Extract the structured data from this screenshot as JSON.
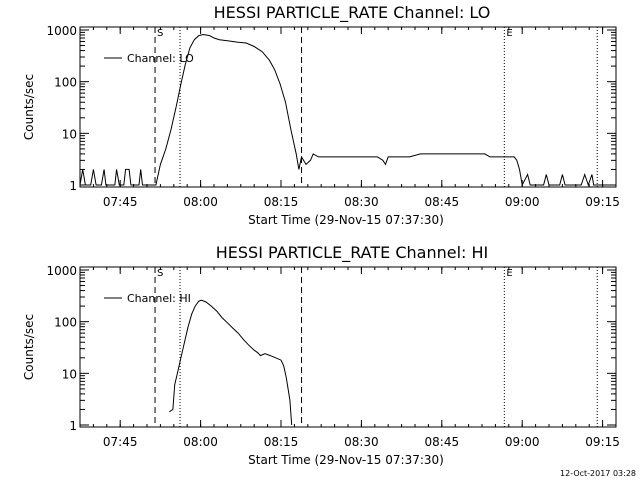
{
  "footer": {
    "timestamp": "12-Oct-2017 03:28"
  },
  "chart_data": [
    {
      "type": "line",
      "title": "HESSI PARTICLE_RATE Channel: LO",
      "xlabel": "Start Time (29-Nov-15 07:37:30)",
      "ylabel": "Counts/sec",
      "yscale": "log",
      "grid": false,
      "legend_position": "top-left",
      "xlim": [
        "07:37:30",
        "09:17:30"
      ],
      "ylim": [
        1,
        1000
      ],
      "x_ticks": [
        "07:45",
        "08:00",
        "08:15",
        "08:30",
        "08:45",
        "09:00",
        "09:15"
      ],
      "y_ticks": [
        "1",
        "10",
        "100",
        "1000"
      ],
      "markers": [
        {
          "time": "07:51:30",
          "style": "dashed",
          "label": "S"
        },
        {
          "time": "07:56:10",
          "style": "dotted",
          "label": ""
        },
        {
          "time": "08:18:50",
          "style": "dashed",
          "label": ""
        },
        {
          "time": "08:56:40",
          "style": "dotted",
          "label": "E"
        },
        {
          "time": "09:14:00",
          "style": "dotted",
          "label": ""
        }
      ],
      "series": [
        {
          "name": "Channel: LO",
          "points": [
            [
              "07:37:30",
              1
            ],
            [
              "07:38:00",
              2
            ],
            [
              "07:38:30",
              1
            ],
            [
              "07:39:30",
              1
            ],
            [
              "07:40:00",
              2
            ],
            [
              "07:40:30",
              1
            ],
            [
              "07:41:30",
              1
            ],
            [
              "07:42:00",
              2
            ],
            [
              "07:42:20",
              1
            ],
            [
              "07:44:00",
              1
            ],
            [
              "07:44:20",
              2
            ],
            [
              "07:44:50",
              1
            ],
            [
              "07:45:40",
              1
            ],
            [
              "07:46:00",
              2
            ],
            [
              "07:46:40",
              2
            ],
            [
              "07:47:00",
              1
            ],
            [
              "07:48:30",
              1
            ],
            [
              "07:48:50",
              2
            ],
            [
              "07:49:10",
              1
            ],
            [
              "07:51:00",
              1
            ],
            [
              "07:51:40",
              1
            ],
            [
              "07:52:30",
              2.5
            ],
            [
              "07:53:30",
              5
            ],
            [
              "07:54:30",
              12
            ],
            [
              "07:55:30",
              35
            ],
            [
              "07:56:20",
              90
            ],
            [
              "07:57:10",
              220
            ],
            [
              "07:58:00",
              450
            ],
            [
              "07:58:50",
              650
            ],
            [
              "07:59:40",
              780
            ],
            [
              "08:00:30",
              820
            ],
            [
              "08:01:40",
              780
            ],
            [
              "08:02:30",
              700
            ],
            [
              "08:03:30",
              650
            ],
            [
              "08:05:00",
              620
            ],
            [
              "08:07:00",
              580
            ],
            [
              "08:08:30",
              560
            ],
            [
              "08:10:00",
              480
            ],
            [
              "08:11:30",
              380
            ],
            [
              "08:12:50",
              260
            ],
            [
              "08:13:50",
              170
            ],
            [
              "08:14:50",
              90
            ],
            [
              "08:15:50",
              40
            ],
            [
              "08:16:50",
              12
            ],
            [
              "08:17:50",
              4
            ],
            [
              "08:18:20",
              2
            ],
            [
              "08:18:50",
              3.5
            ],
            [
              "08:19:40",
              2.5
            ],
            [
              "08:20:30",
              3
            ],
            [
              "08:21:00",
              4
            ],
            [
              "08:22:00",
              3.5
            ],
            [
              "08:24:00",
              3.5
            ],
            [
              "08:26:00",
              3.5
            ],
            [
              "08:28:00",
              3.5
            ],
            [
              "08:30:00",
              3.5
            ],
            [
              "08:32:00",
              3.5
            ],
            [
              "08:33:00",
              3.5
            ],
            [
              "08:34:00",
              3
            ],
            [
              "08:34:30",
              2.5
            ],
            [
              "08:35:00",
              3.5
            ],
            [
              "08:37:00",
              3.5
            ],
            [
              "08:39:00",
              3.5
            ],
            [
              "08:41:00",
              4
            ],
            [
              "08:43:00",
              4
            ],
            [
              "08:45:00",
              4
            ],
            [
              "08:47:00",
              4
            ],
            [
              "08:49:00",
              4
            ],
            [
              "08:51:00",
              4
            ],
            [
              "08:53:00",
              4
            ],
            [
              "08:54:00",
              3.5
            ],
            [
              "08:56:00",
              3.5
            ],
            [
              "08:57:30",
              3.5
            ],
            [
              "08:58:30",
              3.5
            ],
            [
              "08:59:00",
              3
            ],
            [
              "08:59:30",
              2
            ],
            [
              "09:00:00",
              1
            ],
            [
              "09:01:00",
              1.6
            ],
            [
              "09:01:30",
              1
            ],
            [
              "09:04:00",
              1
            ],
            [
              "09:04:30",
              1.6
            ],
            [
              "09:05:00",
              1
            ],
            [
              "09:07:00",
              1
            ],
            [
              "09:07:30",
              1.6
            ],
            [
              "09:08:00",
              1
            ],
            [
              "09:11:00",
              1
            ],
            [
              "09:11:40",
              1.6
            ],
            [
              "09:12:20",
              1
            ],
            [
              "09:13:00",
              1.6
            ],
            [
              "09:13:20",
              1
            ],
            [
              "09:17:30",
              1
            ]
          ]
        }
      ]
    },
    {
      "type": "line",
      "title": "HESSI PARTICLE_RATE Channel: HI",
      "xlabel": "Start Time (29-Nov-15 07:37:30)",
      "ylabel": "Counts/sec",
      "yscale": "log",
      "grid": false,
      "legend_position": "top-left",
      "xlim": [
        "07:37:30",
        "09:17:30"
      ],
      "ylim": [
        1,
        1000
      ],
      "x_ticks": [
        "07:45",
        "08:00",
        "08:15",
        "08:30",
        "08:45",
        "09:00",
        "09:15"
      ],
      "y_ticks": [
        "1",
        "10",
        "100",
        "1000"
      ],
      "markers": [
        {
          "time": "07:51:30",
          "style": "dashed",
          "label": "S"
        },
        {
          "time": "07:56:10",
          "style": "dotted",
          "label": ""
        },
        {
          "time": "08:18:50",
          "style": "dashed",
          "label": ""
        },
        {
          "time": "08:56:40",
          "style": "dotted",
          "label": "E"
        },
        {
          "time": "09:14:00",
          "style": "dotted",
          "label": ""
        }
      ],
      "series": [
        {
          "name": "Channel: HI",
          "points": [
            [
              "07:54:10",
              1.8
            ],
            [
              "07:54:50",
              2
            ],
            [
              "07:55:10",
              6
            ],
            [
              "07:55:40",
              10
            ],
            [
              "07:56:20",
              20
            ],
            [
              "07:57:00",
              40
            ],
            [
              "07:57:40",
              80
            ],
            [
              "07:58:20",
              140
            ],
            [
              "07:59:00",
              200
            ],
            [
              "07:59:40",
              250
            ],
            [
              "08:00:10",
              260
            ],
            [
              "08:01:00",
              240
            ],
            [
              "08:02:00",
              200
            ],
            [
              "08:03:00",
              160
            ],
            [
              "08:04:00",
              120
            ],
            [
              "08:05:00",
              95
            ],
            [
              "08:06:00",
              75
            ],
            [
              "08:07:00",
              60
            ],
            [
              "08:08:00",
              45
            ],
            [
              "08:09:00",
              35
            ],
            [
              "08:10:00",
              28
            ],
            [
              "08:10:40",
              25
            ],
            [
              "08:11:10",
              22
            ],
            [
              "08:12:00",
              24
            ],
            [
              "08:13:00",
              22
            ],
            [
              "08:14:00",
              20
            ],
            [
              "08:15:00",
              18
            ],
            [
              "08:15:30",
              14
            ],
            [
              "08:16:00",
              8
            ],
            [
              "08:16:40",
              3
            ],
            [
              "08:17:00",
              1
            ]
          ]
        }
      ]
    }
  ]
}
